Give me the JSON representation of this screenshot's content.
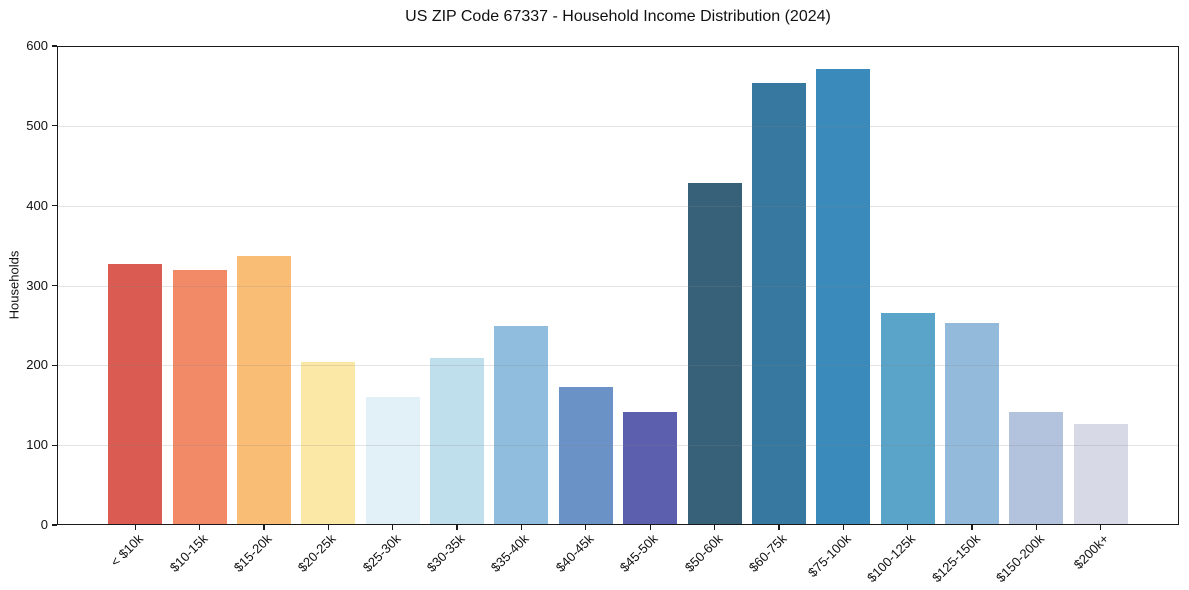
{
  "chart_data": {
    "type": "bar",
    "title": "US ZIP Code 67337 - Household Income Distribution (2024)",
    "xlabel": "",
    "ylabel": "Households",
    "categories": [
      "< $10k",
      "$10-15k",
      "$15-20k",
      "$20-25k",
      "$25-30k",
      "$30-35k",
      "$35-40k",
      "$40-45k",
      "$45-50k",
      "$50-60k",
      "$60-75k",
      "$75-100k",
      "$100-125k",
      "$125-150k",
      "$150-200k",
      "$200k+"
    ],
    "values": [
      327,
      319,
      337,
      204,
      160,
      209,
      249,
      172,
      141,
      429,
      555,
      572,
      265,
      253,
      141,
      126
    ],
    "bar_colors": [
      "#d95b52",
      "#f28a68",
      "#fabd76",
      "#fce8a6",
      "#e2f1f7",
      "#bfdfec",
      "#90bddd",
      "#6b92c6",
      "#5c5fae",
      "#366179",
      "#36789f",
      "#3a8abc",
      "#5ba4c9",
      "#93badb",
      "#b3c3dd",
      "#d8d9e6"
    ],
    "ylim": [
      0,
      600
    ],
    "yticks": [
      0,
      100,
      200,
      300,
      400,
      500,
      600
    ],
    "grid": "horizontal",
    "legend": null,
    "axis_color": "#1a1a1a"
  }
}
